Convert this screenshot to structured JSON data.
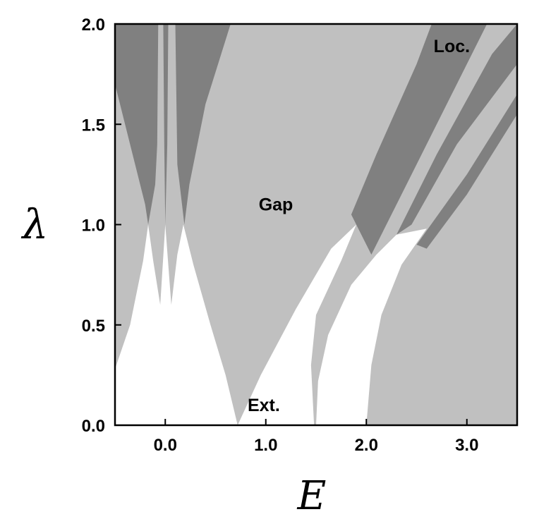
{
  "chart_data": {
    "type": "area",
    "title": "",
    "xlabel": "E",
    "ylabel": "λ",
    "xlim": [
      -0.5,
      3.5
    ],
    "ylim": [
      0.0,
      2.0
    ],
    "x_ticks": [
      "0.0",
      "1.0",
      "2.0",
      "3.0"
    ],
    "x_tick_values": [
      0,
      1,
      2,
      3
    ],
    "y_ticks": [
      "0.0",
      "0.5",
      "1.0",
      "1.5",
      "2.0"
    ],
    "y_tick_values": [
      0,
      0.5,
      1,
      1.5,
      2
    ],
    "grid": false,
    "colors": {
      "gap": "#c0c0c0",
      "localized": "#808080",
      "extended": "#ffffff",
      "frame": "#000000"
    },
    "regions": [
      {
        "label": "Gap",
        "color": "gap",
        "label_pos": [
          1.1,
          1.07
        ],
        "polygon": [
          [
            -0.5,
            0
          ],
          [
            3.5,
            0
          ],
          [
            3.5,
            2
          ],
          [
            -0.5,
            2
          ]
        ]
      },
      {
        "label": "Loc.",
        "color": "localized",
        "label_pos": [
          2.85,
          1.86
        ],
        "polygon": [
          [
            -0.5,
            2
          ],
          [
            -0.5,
            1.7
          ],
          [
            -0.35,
            1.4
          ],
          [
            -0.2,
            1.1
          ],
          [
            -0.17,
            1.0
          ],
          [
            -0.1,
            1.2
          ],
          [
            -0.08,
            1.4
          ],
          [
            -0.07,
            2
          ],
          [
            -0.02,
            2
          ],
          [
            -0.01,
            1.4
          ],
          [
            0.0,
            1.0
          ],
          [
            0.02,
            1.4
          ],
          [
            0.03,
            2
          ],
          [
            0.1,
            2
          ],
          [
            0.12,
            1.3
          ],
          [
            0.19,
            1.0
          ],
          [
            0.24,
            1.2
          ],
          [
            0.4,
            1.6
          ],
          [
            0.65,
            2
          ]
        ]
      },
      {
        "label": "",
        "color": "localized",
        "polygon": [
          [
            1.85,
            1.05
          ],
          [
            2.1,
            1.35
          ],
          [
            2.5,
            1.8
          ],
          [
            2.65,
            2.0
          ],
          [
            3.2,
            2.0
          ],
          [
            2.9,
            1.7
          ],
          [
            2.45,
            1.25
          ],
          [
            2.05,
            0.85
          ]
        ]
      },
      {
        "label": "",
        "color": "localized",
        "polygon": [
          [
            2.3,
            0.95
          ],
          [
            2.7,
            1.35
          ],
          [
            3.25,
            1.85
          ],
          [
            3.5,
            2.0
          ],
          [
            3.5,
            1.8
          ],
          [
            2.9,
            1.4
          ],
          [
            2.45,
            1.0
          ]
        ]
      },
      {
        "label": "",
        "color": "localized",
        "polygon": [
          [
            2.5,
            0.9
          ],
          [
            3.0,
            1.25
          ],
          [
            3.5,
            1.65
          ],
          [
            3.5,
            1.55
          ],
          [
            3.0,
            1.15
          ],
          [
            2.6,
            0.88
          ]
        ]
      },
      {
        "label": "Ext.",
        "color": "extended",
        "label_pos": [
          0.98,
          0.07
        ],
        "polygon": [
          [
            -0.5,
            0
          ],
          [
            -0.5,
            0.28
          ],
          [
            -0.35,
            0.5
          ],
          [
            -0.22,
            0.82
          ],
          [
            -0.17,
            1.0
          ],
          [
            -0.12,
            0.82
          ],
          [
            -0.05,
            0.6
          ],
          [
            0.0,
            1.0
          ],
          [
            0.06,
            0.6
          ],
          [
            0.12,
            0.85
          ],
          [
            0.18,
            1.0
          ],
          [
            0.28,
            0.8
          ],
          [
            0.45,
            0.5
          ],
          [
            0.6,
            0.25
          ],
          [
            0.72,
            0.0
          ]
        ]
      },
      {
        "label": "",
        "color": "extended",
        "polygon": [
          [
            0.72,
            0.0
          ],
          [
            0.95,
            0.25
          ],
          [
            1.3,
            0.58
          ],
          [
            1.65,
            0.88
          ],
          [
            1.9,
            1.0
          ],
          [
            1.75,
            0.82
          ],
          [
            1.5,
            0.55
          ],
          [
            1.45,
            0.3
          ],
          [
            1.48,
            0.0
          ]
        ]
      },
      {
        "label": "",
        "color": "extended",
        "polygon": [
          [
            1.5,
            0.0
          ],
          [
            1.52,
            0.22
          ],
          [
            1.62,
            0.45
          ],
          [
            1.85,
            0.7
          ],
          [
            2.1,
            0.85
          ],
          [
            2.3,
            0.95
          ],
          [
            2.6,
            0.98
          ],
          [
            2.35,
            0.8
          ],
          [
            2.15,
            0.55
          ],
          [
            2.05,
            0.3
          ],
          [
            2.0,
            0.0
          ]
        ]
      }
    ],
    "series": [
      {
        "x": [
          -0.5,
          -0.35,
          -0.22,
          -0.17
        ],
        "y": [
          0.28,
          0.5,
          0.82,
          1.0
        ]
      },
      {
        "x": [
          0.18,
          0.28,
          0.45,
          0.6,
          0.72
        ],
        "y": [
          1.0,
          0.8,
          0.5,
          0.25,
          0.0
        ]
      },
      {
        "x": [
          0.72,
          0.95,
          1.3,
          1.65,
          1.9
        ],
        "y": [
          0.0,
          0.25,
          0.58,
          0.88,
          1.0
        ]
      },
      {
        "x": [
          2.0,
          2.05,
          2.15,
          2.35,
          2.6
        ],
        "y": [
          0.0,
          0.3,
          0.55,
          0.8,
          0.98
        ]
      }
    ]
  }
}
